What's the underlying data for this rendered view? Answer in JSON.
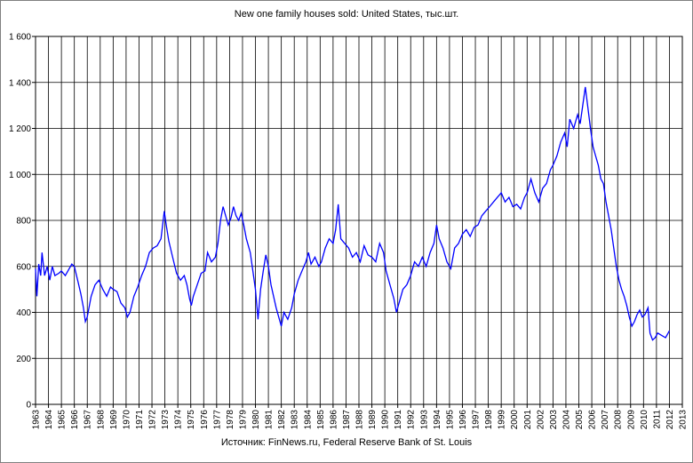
{
  "chart_data": {
    "type": "line",
    "title": "New one family houses sold: United States, тыс.шт.",
    "source": "Источник: FinNews.ru, Federal Reserve Bank of St. Louis",
    "xlabel": "",
    "ylabel": "",
    "xlim": [
      1963,
      2013
    ],
    "ylim": [
      0,
      1600
    ],
    "grid": true,
    "line_color": "#0000ff",
    "y_ticks": [
      "0",
      "200",
      "400",
      "600",
      "800",
      "1 000",
      "1 200",
      "1 400",
      "1 600"
    ],
    "x_ticks": [
      "1963",
      "1964",
      "1965",
      "1966",
      "1967",
      "1968",
      "1969",
      "1970",
      "1971",
      "1972",
      "1973",
      "1974",
      "1975",
      "1976",
      "1977",
      "1978",
      "1979",
      "1980",
      "1981",
      "1982",
      "1983",
      "1984",
      "1985",
      "1986",
      "1987",
      "1988",
      "1989",
      "1990",
      "1991",
      "1992",
      "1993",
      "1994",
      "1995",
      "1996",
      "1997",
      "1998",
      "1999",
      "2000",
      "2001",
      "2002",
      "2003",
      "2004",
      "2005",
      "2006",
      "2007",
      "2008",
      "2009",
      "2010",
      "2011",
      "2012",
      "2013"
    ],
    "series": [
      {
        "name": "",
        "points": [
          [
            1963.0,
            590
          ],
          [
            1963.1,
            470
          ],
          [
            1963.25,
            610
          ],
          [
            1963.4,
            560
          ],
          [
            1963.5,
            660
          ],
          [
            1963.7,
            560
          ],
          [
            1963.9,
            600
          ],
          [
            1964.1,
            540
          ],
          [
            1964.3,
            600
          ],
          [
            1964.5,
            560
          ],
          [
            1964.8,
            570
          ],
          [
            1965.0,
            580
          ],
          [
            1965.3,
            560
          ],
          [
            1965.6,
            590
          ],
          [
            1965.8,
            610
          ],
          [
            1966.0,
            600
          ],
          [
            1966.3,
            530
          ],
          [
            1966.5,
            480
          ],
          [
            1966.7,
            420
          ],
          [
            1966.85,
            360
          ],
          [
            1967.0,
            380
          ],
          [
            1967.3,
            470
          ],
          [
            1967.6,
            520
          ],
          [
            1967.9,
            540
          ],
          [
            1968.2,
            500
          ],
          [
            1968.5,
            470
          ],
          [
            1968.8,
            510
          ],
          [
            1969.0,
            500
          ],
          [
            1969.3,
            490
          ],
          [
            1969.6,
            440
          ],
          [
            1969.9,
            420
          ],
          [
            1970.1,
            380
          ],
          [
            1970.3,
            400
          ],
          [
            1970.6,
            470
          ],
          [
            1970.9,
            510
          ],
          [
            1971.2,
            560
          ],
          [
            1971.5,
            600
          ],
          [
            1971.8,
            660
          ],
          [
            1972.1,
            680
          ],
          [
            1972.4,
            690
          ],
          [
            1972.7,
            720
          ],
          [
            1972.95,
            840
          ],
          [
            1973.1,
            780
          ],
          [
            1973.3,
            710
          ],
          [
            1973.6,
            640
          ],
          [
            1973.9,
            570
          ],
          [
            1974.2,
            540
          ],
          [
            1974.5,
            560
          ],
          [
            1974.7,
            520
          ],
          [
            1974.9,
            460
          ],
          [
            1975.05,
            430
          ],
          [
            1975.2,
            470
          ],
          [
            1975.5,
            520
          ],
          [
            1975.8,
            570
          ],
          [
            1976.1,
            580
          ],
          [
            1976.3,
            660
          ],
          [
            1976.6,
            620
          ],
          [
            1976.9,
            640
          ],
          [
            1977.1,
            700
          ],
          [
            1977.3,
            800
          ],
          [
            1977.5,
            860
          ],
          [
            1977.7,
            820
          ],
          [
            1977.9,
            780
          ],
          [
            1978.1,
            810
          ],
          [
            1978.3,
            860
          ],
          [
            1978.5,
            820
          ],
          [
            1978.7,
            800
          ],
          [
            1978.9,
            830
          ],
          [
            1979.1,
            780
          ],
          [
            1979.3,
            720
          ],
          [
            1979.6,
            660
          ],
          [
            1979.8,
            580
          ],
          [
            1980.0,
            500
          ],
          [
            1980.2,
            370
          ],
          [
            1980.4,
            500
          ],
          [
            1980.6,
            580
          ],
          [
            1980.8,
            650
          ],
          [
            1981.0,
            600
          ],
          [
            1981.2,
            520
          ],
          [
            1981.4,
            470
          ],
          [
            1981.6,
            420
          ],
          [
            1981.8,
            380
          ],
          [
            1982.0,
            340
          ],
          [
            1982.2,
            400
          ],
          [
            1982.5,
            370
          ],
          [
            1982.8,
            420
          ],
          [
            1983.0,
            480
          ],
          [
            1983.3,
            540
          ],
          [
            1983.6,
            580
          ],
          [
            1983.9,
            620
          ],
          [
            1984.1,
            660
          ],
          [
            1984.3,
            610
          ],
          [
            1984.6,
            640
          ],
          [
            1984.9,
            600
          ],
          [
            1985.1,
            620
          ],
          [
            1985.4,
            680
          ],
          [
            1985.7,
            720
          ],
          [
            1986.0,
            700
          ],
          [
            1986.2,
            760
          ],
          [
            1986.4,
            870
          ],
          [
            1986.6,
            720
          ],
          [
            1986.9,
            700
          ],
          [
            1987.2,
            680
          ],
          [
            1987.5,
            640
          ],
          [
            1987.8,
            660
          ],
          [
            1988.1,
            620
          ],
          [
            1988.4,
            690
          ],
          [
            1988.7,
            650
          ],
          [
            1989.0,
            640
          ],
          [
            1989.3,
            620
          ],
          [
            1989.6,
            700
          ],
          [
            1989.9,
            660
          ],
          [
            1990.1,
            580
          ],
          [
            1990.4,
            520
          ],
          [
            1990.7,
            460
          ],
          [
            1990.9,
            400
          ],
          [
            1991.1,
            440
          ],
          [
            1991.4,
            500
          ],
          [
            1991.7,
            520
          ],
          [
            1992.0,
            560
          ],
          [
            1992.3,
            620
          ],
          [
            1992.6,
            600
          ],
          [
            1992.9,
            640
          ],
          [
            1993.2,
            600
          ],
          [
            1993.5,
            660
          ],
          [
            1993.8,
            700
          ],
          [
            1994.0,
            780
          ],
          [
            1994.2,
            720
          ],
          [
            1994.5,
            680
          ],
          [
            1994.8,
            620
          ],
          [
            1995.1,
            590
          ],
          [
            1995.4,
            680
          ],
          [
            1995.7,
            700
          ],
          [
            1996.0,
            740
          ],
          [
            1996.3,
            760
          ],
          [
            1996.6,
            730
          ],
          [
            1996.9,
            770
          ],
          [
            1997.2,
            780
          ],
          [
            1997.5,
            820
          ],
          [
            1997.8,
            840
          ],
          [
            1998.1,
            860
          ],
          [
            1998.4,
            880
          ],
          [
            1998.7,
            900
          ],
          [
            1999.0,
            920
          ],
          [
            1999.3,
            880
          ],
          [
            1999.6,
            900
          ],
          [
            1999.9,
            860
          ],
          [
            2000.2,
            870
          ],
          [
            2000.5,
            850
          ],
          [
            2000.8,
            900
          ],
          [
            2001.0,
            920
          ],
          [
            2001.3,
            980
          ],
          [
            2001.6,
            920
          ],
          [
            2001.9,
            880
          ],
          [
            2002.2,
            940
          ],
          [
            2002.5,
            960
          ],
          [
            2002.8,
            1020
          ],
          [
            2003.0,
            1040
          ],
          [
            2003.3,
            1080
          ],
          [
            2003.6,
            1140
          ],
          [
            2003.9,
            1180
          ],
          [
            2004.1,
            1120
          ],
          [
            2004.3,
            1240
          ],
          [
            2004.6,
            1200
          ],
          [
            2004.9,
            1260
          ],
          [
            2005.1,
            1220
          ],
          [
            2005.3,
            1300
          ],
          [
            2005.5,
            1380
          ],
          [
            2005.7,
            1290
          ],
          [
            2005.9,
            1200
          ],
          [
            2006.1,
            1120
          ],
          [
            2006.3,
            1080
          ],
          [
            2006.5,
            1040
          ],
          [
            2006.7,
            980
          ],
          [
            2006.9,
            960
          ],
          [
            2007.1,
            880
          ],
          [
            2007.3,
            820
          ],
          [
            2007.5,
            760
          ],
          [
            2007.7,
            680
          ],
          [
            2007.9,
            600
          ],
          [
            2008.1,
            540
          ],
          [
            2008.3,
            500
          ],
          [
            2008.5,
            470
          ],
          [
            2008.7,
            430
          ],
          [
            2008.9,
            380
          ],
          [
            2009.1,
            340
          ],
          [
            2009.3,
            360
          ],
          [
            2009.5,
            390
          ],
          [
            2009.7,
            410
          ],
          [
            2009.9,
            380
          ],
          [
            2010.1,
            390
          ],
          [
            2010.35,
            420
          ],
          [
            2010.5,
            310
          ],
          [
            2010.7,
            280
          ],
          [
            2010.9,
            290
          ],
          [
            2011.1,
            310
          ],
          [
            2011.4,
            300
          ],
          [
            2011.7,
            290
          ],
          [
            2011.9,
            310
          ],
          [
            2012.0,
            320
          ]
        ]
      }
    ]
  }
}
